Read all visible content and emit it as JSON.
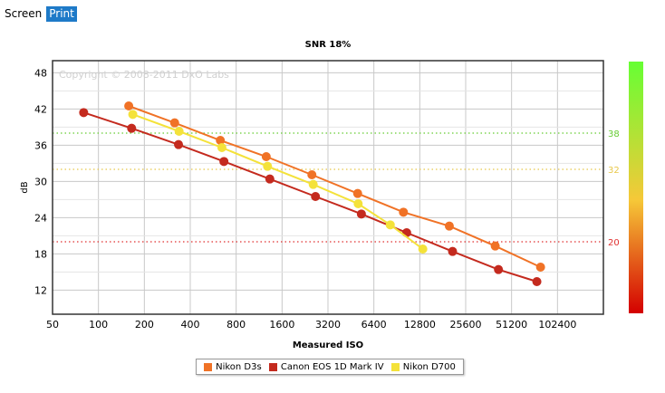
{
  "tabs": [
    {
      "label": "Screen",
      "active": false
    },
    {
      "label": "Print",
      "active": true
    }
  ],
  "watermark": "Copyright © 2008-2011 DxO Labs",
  "chart_data": {
    "type": "line",
    "title": "SNR 18%",
    "xlabel": "Measured ISO",
    "ylabel": "dB",
    "xscale": "log2",
    "xlim": [
      50,
      204800
    ],
    "ylim": [
      8,
      50
    ],
    "x_ticks": [
      50,
      100,
      200,
      400,
      800,
      1600,
      3200,
      6400,
      12800,
      25600,
      51200,
      102400
    ],
    "y_ticks": [
      12,
      18,
      24,
      30,
      36,
      42,
      48
    ],
    "grid": true,
    "legend_position": "bottom",
    "series": [
      {
        "name": "Nikon D3s",
        "color": "#f07226",
        "x": [
          158,
          316,
          630,
          1260,
          2510,
          5010,
          10000,
          20000,
          40000,
          79300
        ],
        "y": [
          42.5,
          39.7,
          36.8,
          34.1,
          31.1,
          28.0,
          24.9,
          22.6,
          19.3,
          15.8
        ]
      },
      {
        "name": "Canon EOS 1D Mark IV",
        "color": "#c42a1e",
        "x": [
          80,
          165,
          335,
          665,
          1330,
          2650,
          5300,
          10500,
          21000,
          42000,
          75000
        ],
        "y": [
          41.4,
          38.8,
          36.1,
          33.3,
          30.4,
          27.5,
          24.6,
          21.5,
          18.4,
          15.4,
          13.4
        ]
      },
      {
        "name": "Nikon D700",
        "color": "#f4e23a",
        "x": [
          168,
          338,
          645,
          1285,
          2560,
          5050,
          8200,
          13400
        ],
        "y": [
          41.1,
          38.3,
          35.6,
          32.5,
          29.5,
          26.3,
          22.8,
          18.8
        ]
      }
    ],
    "reference_lines": [
      {
        "label": "38",
        "value": 38,
        "color": "#66cc33"
      },
      {
        "label": "32",
        "value": 32,
        "color": "#e8c84a"
      },
      {
        "label": "20",
        "value": 20,
        "color": "#e03030"
      }
    ],
    "colorbar": {
      "top_color": "#66ff33",
      "mid_color": "#f6c838",
      "bottom_color": "#d40000"
    }
  }
}
